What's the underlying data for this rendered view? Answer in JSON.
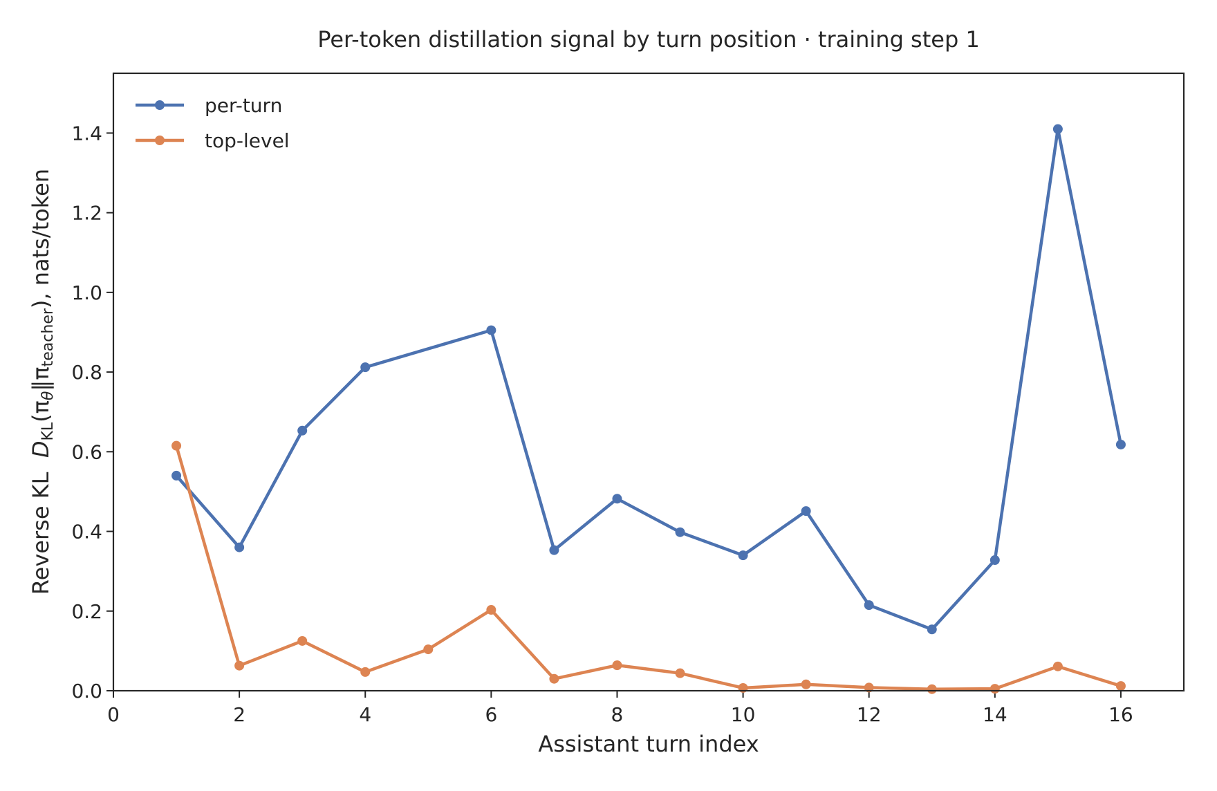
{
  "chart_data": {
    "type": "line",
    "title": "Per-token distillation signal by turn position · training step 1",
    "xlabel": "Assistant turn index",
    "ylabel_prefix": "Reverse KL  ",
    "ylabel_D": "D",
    "ylabel_D_sub": "KL",
    "ylabel_open": "(π",
    "ylabel_theta": "θ",
    "ylabel_mid": "‖π",
    "ylabel_teacher": "teacher",
    "ylabel_suffix": "), nats/token",
    "xlim": [
      0,
      17
    ],
    "ylim": [
      0,
      1.55
    ],
    "xticks": [
      0,
      2,
      4,
      6,
      8,
      10,
      12,
      14,
      16
    ],
    "yticks": [
      0.0,
      0.2,
      0.4,
      0.6,
      0.8,
      1.0,
      1.2,
      1.4
    ],
    "ytick_labels": [
      "0.0",
      "0.2",
      "0.4",
      "0.6",
      "0.8",
      "1.0",
      "1.2",
      "1.4"
    ],
    "grid": false,
    "legend_position": "top-left",
    "x": [
      1,
      2,
      3,
      4,
      5,
      6,
      7,
      8,
      9,
      10,
      11,
      12,
      13,
      14,
      15,
      16
    ],
    "series": [
      {
        "name": "per-turn",
        "color": "#4c72b0",
        "x": [
          1,
          2,
          3,
          4,
          6,
          7,
          8,
          9,
          10,
          11,
          12,
          13,
          14,
          15,
          16
        ],
        "values": [
          0.54,
          0.36,
          0.653,
          0.812,
          0.905,
          0.353,
          0.482,
          0.398,
          0.34,
          0.451,
          0.215,
          0.154,
          0.328,
          1.41,
          0.618
        ]
      },
      {
        "name": "top-level",
        "color": "#dd8452",
        "x": [
          1,
          2,
          3,
          4,
          5,
          6,
          7,
          8,
          9,
          10,
          11,
          12,
          13,
          14,
          15,
          16
        ],
        "values": [
          0.615,
          0.063,
          0.125,
          0.047,
          0.104,
          0.203,
          0.03,
          0.064,
          0.044,
          0.007,
          0.016,
          0.008,
          0.004,
          0.005,
          0.061,
          0.012
        ]
      }
    ]
  }
}
